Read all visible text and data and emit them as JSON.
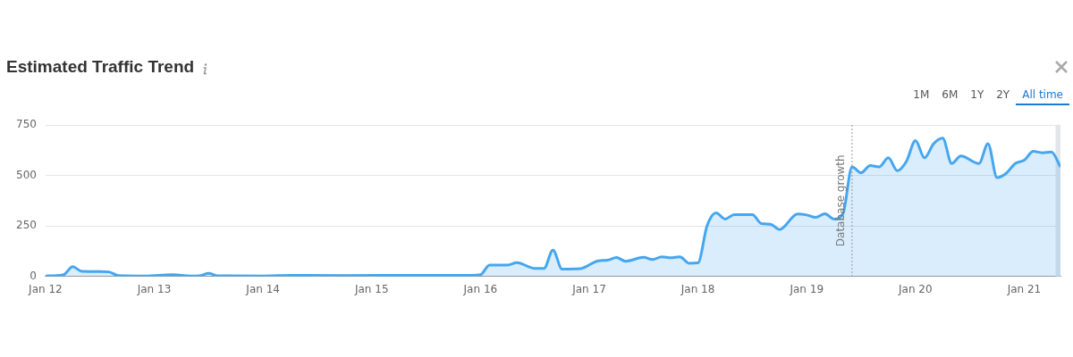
{
  "chart_data": {
    "type": "area",
    "title": "Estimated Traffic Trend",
    "annotations": [
      "1M",
      "6M",
      "1Y",
      "2Y",
      "All time"
    ],
    "x": [
      "2012-01",
      "2012-02",
      "2012-03",
      "2012-04",
      "2012-05",
      "2012-07",
      "2012-08",
      "2012-09",
      "2012-12",
      "2013-03",
      "2013-05",
      "2013-06",
      "2013-07",
      "2013-08",
      "2014-01",
      "2014-04",
      "2014-10",
      "2015-05",
      "2015-12",
      "2016-01",
      "2016-02",
      "2016-04",
      "2016-05",
      "2016-07",
      "2016-08",
      "2016-09",
      "2016-10",
      "2016-12",
      "2017-02",
      "2017-03",
      "2017-04",
      "2017-05",
      "2017-07",
      "2017-08",
      "2017-09",
      "2017-10",
      "2017-11",
      "2017-12",
      "2018-01",
      "2018-02",
      "2018-03",
      "2018-04",
      "2018-05",
      "2018-07",
      "2018-08",
      "2018-09",
      "2018-10",
      "2018-12",
      "2019-01",
      "2019-02",
      "2019-03",
      "2019-04",
      "2019-05",
      "2019-06",
      "2019-07",
      "2019-08",
      "2019-09",
      "2019-10",
      "2019-11",
      "2019-12",
      "2020-01",
      "2020-02",
      "2020-03",
      "2020-04",
      "2020-05",
      "2020-06",
      "2020-08",
      "2020-09",
      "2020-10",
      "2020-11",
      "2020-12",
      "2021-01",
      "2021-02",
      "2021-03",
      "2021-04",
      "2021-05"
    ],
    "series": [
      {
        "color": "#45a6ef",
        "values": [
          2,
          3,
          8,
          48,
          25,
          24,
          22,
          4,
          2,
          8,
          2,
          3,
          15,
          3,
          2,
          5,
          4,
          5,
          5,
          8,
          56,
          56,
          68,
          39,
          39,
          130,
          36,
          38,
          77,
          80,
          93,
          75,
          94,
          83,
          97,
          92,
          97,
          65,
          67,
          250,
          314,
          284,
          306,
          306,
          261,
          258,
          232,
          309,
          304,
          292,
          310,
          284,
          310,
          542,
          513,
          549,
          542,
          587,
          523,
          570,
          673,
          587,
          657,
          685,
          559,
          596,
          559,
          657,
          489,
          510,
          559,
          575,
          619,
          612,
          616,
          542
        ]
      }
    ],
    "xlim": [
      "2012-01",
      "2021-05"
    ],
    "xticks": [
      {
        "value": "2012-01",
        "label": "Jan 12"
      },
      {
        "value": "2013-01",
        "label": "Jan 13"
      },
      {
        "value": "2014-01",
        "label": "Jan 14"
      },
      {
        "value": "2015-01",
        "label": "Jan 15"
      },
      {
        "value": "2016-01",
        "label": "Jan 16"
      },
      {
        "value": "2017-01",
        "label": "Jan 17"
      },
      {
        "value": "2018-01",
        "label": "Jan 18"
      },
      {
        "value": "2019-01",
        "label": "Jan 19"
      },
      {
        "value": "2020-01",
        "label": "Jan 20"
      },
      {
        "value": "2021-01",
        "label": "Jan 21"
      }
    ],
    "ylim": [
      0,
      750
    ],
    "yticks": [
      0,
      250,
      500,
      750
    ],
    "grid": "y",
    "legend": false,
    "marker": "none",
    "line_style": "solid",
    "ref_lines": [
      {
        "axis": "x",
        "value": "2019-06",
        "label": "Database growth",
        "color": "#999999",
        "line_style": "dotted"
      }
    ],
    "bands": [
      {
        "axis": "x",
        "from": "2021-04-15",
        "to": "2021-05",
        "color": "#e3e6e8"
      }
    ]
  }
}
